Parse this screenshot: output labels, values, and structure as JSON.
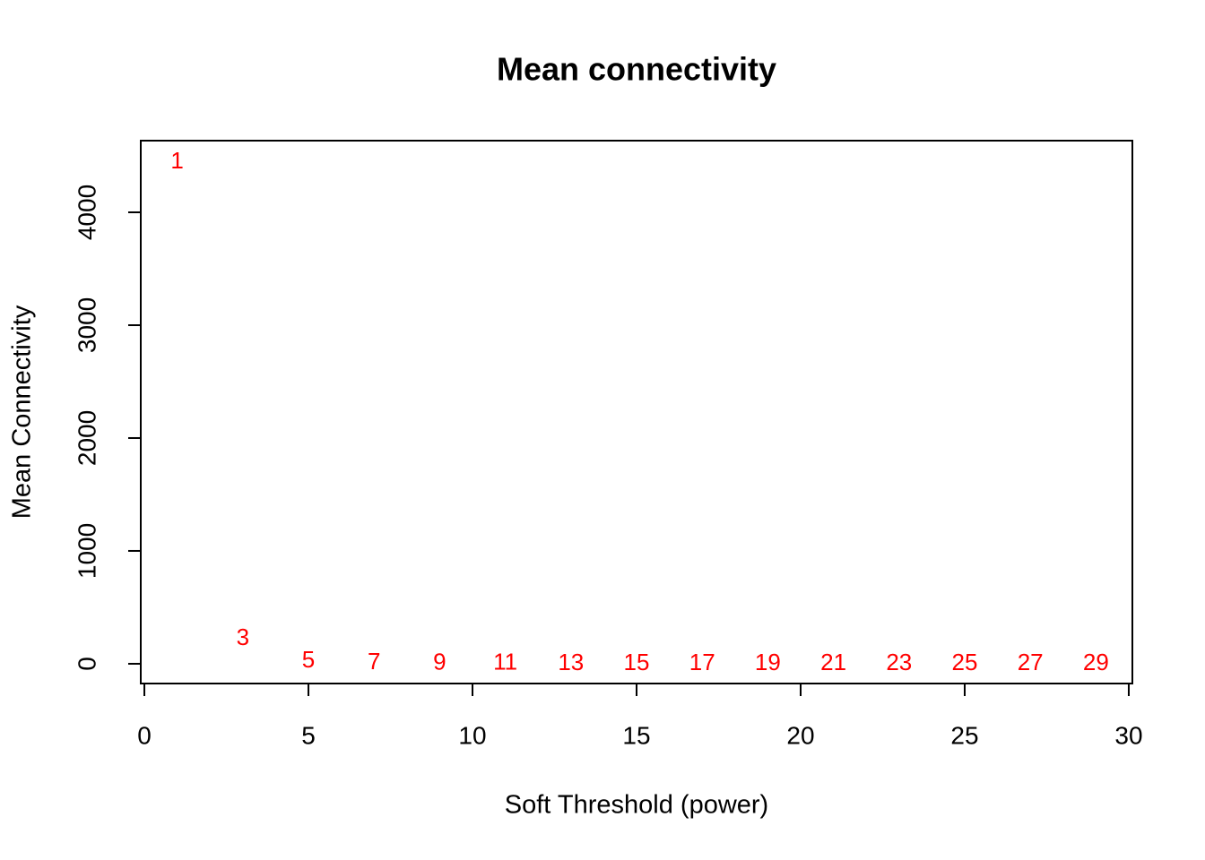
{
  "chart_data": {
    "type": "scatter",
    "title": "Mean connectivity",
    "x_label": "Soft Threshold (power)",
    "y_label": "Mean Connectivity",
    "x": [
      1,
      3,
      5,
      7,
      9,
      11,
      13,
      15,
      17,
      19,
      21,
      23,
      25,
      27,
      29
    ],
    "values": [
      4444,
      222,
      24,
      5,
      2,
      1,
      0.5,
      0.3,
      0.2,
      0.1,
      0.1,
      0.05,
      0.03,
      0.02,
      0.01
    ],
    "color": "#ff0000",
    "xlim": [
      -0.11,
      30.11
    ],
    "xticks": [
      0,
      5,
      10,
      15,
      20,
      25,
      30
    ],
    "ylim": [
      -175,
      4635
    ],
    "yticks": [
      0,
      1000,
      2000,
      3000,
      4000
    ]
  }
}
